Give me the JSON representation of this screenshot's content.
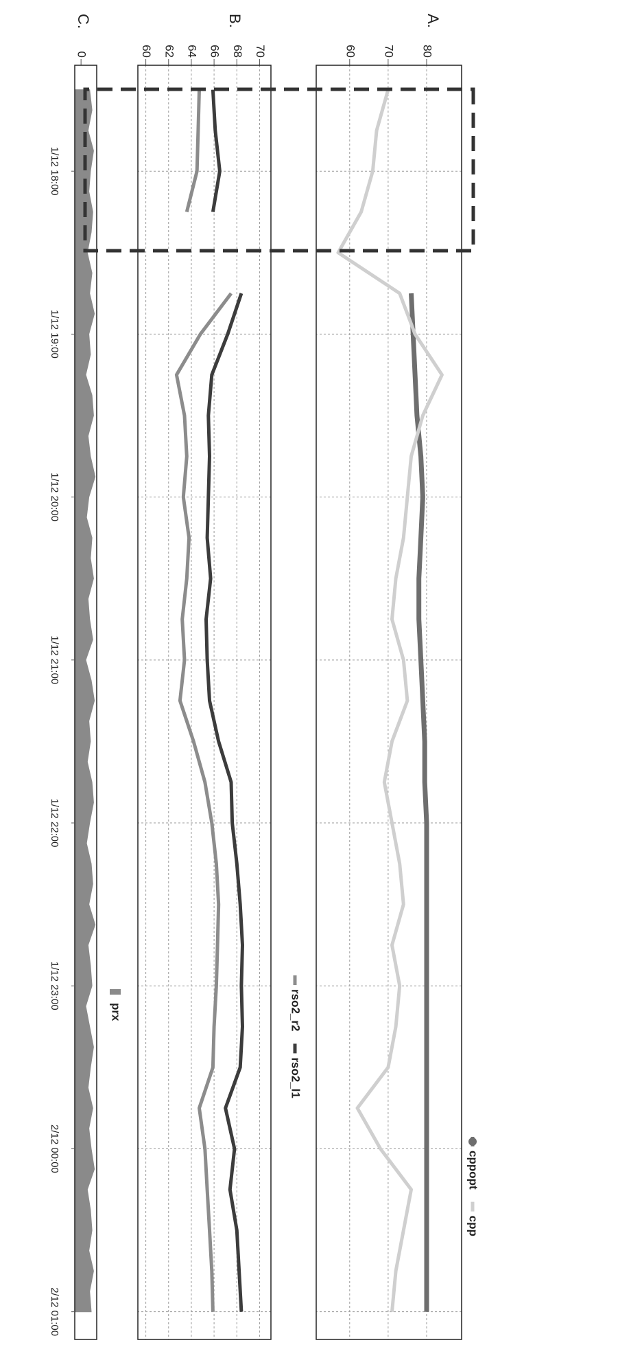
{
  "chart_data": [
    {
      "type": "line",
      "panel_label": "A.",
      "x": [
        17.5,
        17.75,
        18,
        18.25,
        18.5,
        18.75,
        19,
        19.25,
        19.5,
        19.75,
        20,
        20.25,
        20.5,
        20.75,
        21,
        21.25,
        21.5,
        21.75,
        22,
        22.25,
        22.5,
        22.75,
        23,
        23.25,
        23.5,
        23.75,
        24,
        24.25,
        24.5,
        24.75,
        25
      ],
      "series": [
        {
          "name": "cppopt",
          "color": "#6e6e6e",
          "marker": "circle",
          "values": [
            null,
            null,
            null,
            null,
            null,
            76,
            76.5,
            77,
            77.5,
            78.5,
            79,
            78.5,
            78,
            78,
            78.5,
            79,
            79.5,
            79.5,
            80,
            80,
            80,
            80,
            80,
            80,
            80,
            80,
            80,
            80,
            80,
            80,
            80
          ]
        },
        {
          "name": "cpp",
          "color": "#cfcfcf",
          "values": [
            70,
            67,
            66,
            63,
            57,
            73,
            77,
            84,
            79,
            76,
            75,
            74,
            72,
            71,
            74,
            75,
            71,
            69,
            71,
            73,
            74,
            71,
            73,
            72,
            70,
            62,
            68,
            76,
            74,
            72,
            71
          ]
        }
      ],
      "xlim": [
        17.35,
        25.17
      ],
      "ylim": [
        51.3,
        89.1
      ],
      "yticks": [
        60,
        70,
        80
      ],
      "grid": true,
      "legend": "top-right"
    },
    {
      "type": "line",
      "panel_label": "B.",
      "x": [
        17.5,
        17.75,
        18,
        18.25,
        18.5,
        18.75,
        19,
        19.25,
        19.5,
        19.75,
        20,
        20.25,
        20.5,
        20.75,
        21,
        21.25,
        21.5,
        21.75,
        22,
        22.25,
        22.5,
        22.75,
        23,
        23.25,
        23.5,
        23.75,
        24,
        24.25,
        24.5,
        24.75,
        25
      ],
      "series": [
        {
          "name": "rso2_r2",
          "color": "#8c8c8c",
          "values": [
            64.7,
            64.6,
            64.5,
            63.6,
            null,
            67.5,
            64.8,
            62.7,
            63.4,
            63.6,
            63.3,
            63.8,
            63.6,
            63.2,
            63.4,
            63.0,
            64.2,
            65.2,
            65.8,
            66.2,
            66.4,
            66.3,
            66.2,
            66.0,
            65.9,
            64.7,
            65.2,
            65.4,
            65.6,
            65.8,
            65.9
          ]
        },
        {
          "name": "rso2_l1",
          "color": "#3c3c3c",
          "values": [
            65.9,
            66.1,
            66.5,
            65.9,
            null,
            68.4,
            67.2,
            65.8,
            65.5,
            65.6,
            65.5,
            65.4,
            65.7,
            65.3,
            65.4,
            65.6,
            66.4,
            67.5,
            67.6,
            68.0,
            68.3,
            68.5,
            68.4,
            68.5,
            68.3,
            67.0,
            67.8,
            67.4,
            68.0,
            68.2,
            68.4
          ]
        }
      ],
      "xlim": [
        17.35,
        25.17
      ],
      "ylim": [
        59.3,
        71.0
      ],
      "yticks": [
        60,
        62,
        64,
        66,
        68,
        70
      ],
      "grid": true,
      "legend": "top-right"
    },
    {
      "type": "area",
      "panel_label": "C.",
      "x": [
        17.5,
        17.625,
        17.75,
        17.875,
        18,
        18.125,
        18.25,
        18.375,
        18.5,
        18.625,
        18.75,
        18.875,
        19,
        19.125,
        19.25,
        19.375,
        19.5,
        19.625,
        19.75,
        19.875,
        20,
        20.125,
        20.25,
        20.375,
        20.5,
        20.625,
        20.75,
        20.875,
        21,
        21.125,
        21.25,
        21.375,
        21.5,
        21.625,
        21.75,
        21.875,
        22,
        22.125,
        22.25,
        22.375,
        22.5,
        22.625,
        22.75,
        22.875,
        23,
        23.125,
        23.25,
        23.375,
        23.5,
        23.625,
        23.75,
        23.875,
        24,
        24.125,
        24.25,
        24.375,
        24.5,
        24.625,
        24.75,
        24.875,
        25
      ],
      "series": [
        {
          "name": "prx",
          "color": "#8a8a8a",
          "values": [
            0.55,
            0.7,
            0.45,
            0.8,
            0.6,
            0.5,
            0.75,
            0.65,
            0.4,
            0.7,
            0.55,
            0.85,
            0.5,
            0.6,
            0.3,
            0.7,
            0.8,
            0.45,
            0.6,
            0.9,
            0.5,
            0.35,
            0.7,
            0.6,
            0.8,
            0.45,
            0.55,
            0.75,
            0.3,
            0.65,
            0.85,
            0.5,
            0.6,
            0.4,
            0.7,
            0.8,
            0.55,
            0.35,
            0.65,
            0.75,
            0.5,
            0.9,
            0.45,
            0.6,
            0.7,
            0.3,
            0.55,
            0.8,
            0.6,
            0.45,
            0.75,
            0.5,
            0.65,
            0.85,
            0.4,
            0.6,
            0.7,
            0.5,
            0.8,
            0.55,
            0.65
          ]
        }
      ],
      "xlim": [
        17.35,
        25.17
      ],
      "ylim": [
        -0.4,
        1.0
      ],
      "yticks": [
        0
      ],
      "grid": false,
      "legend": "top-right",
      "xticks": [
        {
          "value": 18,
          "label": "1/12 18:00"
        },
        {
          "value": 19,
          "label": "1/12 19:00"
        },
        {
          "value": 20,
          "label": "1/12 20:00"
        },
        {
          "value": 21,
          "label": "1/12 21:00"
        },
        {
          "value": 22,
          "label": "1/12 22:00"
        },
        {
          "value": 23,
          "label": "1/12 23:00"
        },
        {
          "value": 24,
          "label": "2/12 00:00"
        },
        {
          "value": 25,
          "label": "2/12 01:00"
        }
      ]
    }
  ]
}
